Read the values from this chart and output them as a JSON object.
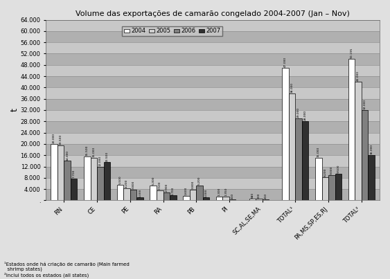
{
  "title": "Volume das exportações de camarão congelado 2004-2007 (Jan – Nov)",
  "ylabel": "t",
  "categories": [
    "RN",
    "CE",
    "PE",
    "RA",
    "PB",
    "PI",
    "SC,AL,SE,MA",
    "TOTAL¹",
    "PA,MS,SP,ES,RJ",
    "TOTAL²"
  ],
  "series_labels": [
    "2004",
    "2005",
    "2006",
    "2007"
  ],
  "series_colors": [
    "#ffffff",
    "#d0d0d0",
    "#808080",
    "#303030"
  ],
  "series_edgecolors": [
    "#000000",
    "#000000",
    "#000000",
    "#000000"
  ],
  "bar_values": {
    "2004": [
      20000,
      15500,
      5500,
      5300,
      1600,
      1300,
      680,
      47000,
      15000,
      50195
    ],
    "2005": [
      19500,
      15000,
      4200,
      3500,
      3800,
      1350,
      500,
      38000,
      8200,
      42000
    ],
    "2006": [
      14000,
      12000,
      3800,
      2900,
      5200,
      410,
      410,
      29000,
      9000,
      32000
    ],
    "2007": [
      7700,
      13500,
      1000,
      1700,
      1000,
      80,
      80,
      28000,
      9500,
      16000
    ]
  },
  "ylim": [
    0,
    64000
  ],
  "ytick_step": 4000,
  "bar_width": 0.2,
  "footnote1": "¹Estados onde há criação de camarão (Main farmed\n  shrimp states)",
  "footnote2": "²Inclui todos os estados (all states)",
  "bg_color": "#c8c8c8",
  "band_colors": [
    "#b0b0b0",
    "#c8c8c8"
  ],
  "grid_line_color": "#909090",
  "outer_bg": "#e0e0e0"
}
